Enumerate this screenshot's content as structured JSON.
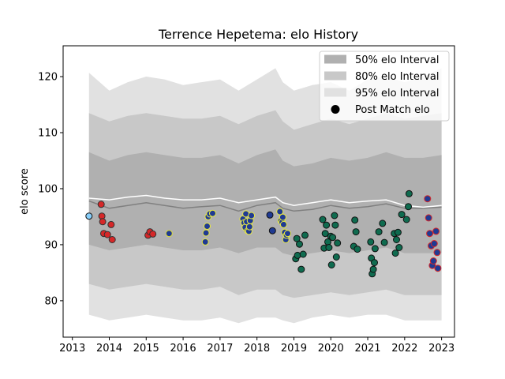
{
  "chart_data": {
    "type": "scatter",
    "title": "Terrence Hepetema: elo History",
    "xlabel": "",
    "ylabel": "elo score",
    "xlim": [
      2012.75,
      2023.35
    ],
    "ylim": [
      73.5,
      125.5
    ],
    "xticks": [
      2013,
      2014,
      2015,
      2016,
      2017,
      2018,
      2019,
      2020,
      2021,
      2022,
      2023
    ],
    "yticks": [
      80,
      90,
      100,
      110,
      120
    ],
    "legend": {
      "position": "top-right",
      "entries": [
        "50% elo Interval",
        "80% elo Interval",
        "95% elo Interval",
        "Post Match elo"
      ]
    },
    "colors": {
      "band95": "#e1e1e1",
      "band80": "#c8c8c8",
      "band50": "#b0b0b0",
      "median_line": "#808080",
      "mean_line": "#ffffff",
      "marker_edge": "#111111"
    },
    "bands": {
      "x": [
        2013.45,
        2014.0,
        2014.5,
        2015.0,
        2015.5,
        2016.0,
        2016.5,
        2017.0,
        2017.5,
        2018.0,
        2018.5,
        2018.7,
        2019.0,
        2019.5,
        2020.0,
        2020.5,
        2021.0,
        2021.5,
        2022.0,
        2022.5,
        2023.0
      ],
      "p95_hi": [
        120.7,
        117.5,
        119.0,
        120.0,
        119.5,
        118.5,
        119.0,
        119.5,
        117.5,
        119.5,
        121.5,
        119.0,
        117.5,
        118.5,
        119.0,
        117.5,
        119.5,
        120.0,
        119.0,
        120.0,
        121.5
      ],
      "p80_hi": [
        113.5,
        112.0,
        113.0,
        113.5,
        113.0,
        112.5,
        112.5,
        113.0,
        111.5,
        113.0,
        114.0,
        112.0,
        110.5,
        111.5,
        112.5,
        111.5,
        112.5,
        113.5,
        112.5,
        113.0,
        113.5
      ],
      "p50_hi": [
        106.5,
        105.0,
        106.0,
        106.5,
        106.0,
        105.5,
        105.5,
        106.0,
        104.5,
        106.0,
        107.0,
        105.0,
        104.0,
        104.5,
        105.5,
        105.0,
        105.5,
        106.5,
        105.5,
        105.5,
        106.0
      ],
      "median": [
        97.8,
        96.5,
        97.0,
        97.5,
        97.0,
        96.5,
        96.8,
        97.0,
        96.0,
        97.0,
        97.5,
        96.5,
        96.0,
        96.3,
        97.0,
        96.5,
        96.8,
        97.3,
        96.5,
        96.5,
        96.7
      ],
      "p50_lo": [
        90.0,
        89.0,
        89.5,
        90.0,
        89.5,
        89.0,
        89.0,
        89.5,
        88.5,
        89.5,
        89.5,
        88.5,
        88.0,
        88.5,
        89.0,
        88.5,
        89.0,
        89.5,
        88.5,
        88.5,
        88.5
      ],
      "p80_lo": [
        83.0,
        82.0,
        82.5,
        83.0,
        82.5,
        82.0,
        82.0,
        82.5,
        81.0,
        82.0,
        82.0,
        81.0,
        80.5,
        81.0,
        81.5,
        81.0,
        81.5,
        82.0,
        81.0,
        81.0,
        81.0
      ],
      "p95_lo": [
        77.5,
        76.5,
        77.0,
        77.5,
        77.0,
        76.5,
        76.5,
        77.0,
        76.0,
        77.0,
        77.0,
        76.5,
        76.0,
        77.0,
        77.5,
        77.0,
        77.5,
        77.5,
        76.5,
        76.5,
        76.5
      ],
      "mean": [
        98.3,
        98.0,
        98.5,
        98.8,
        98.3,
        98.0,
        98.0,
        98.3,
        97.5,
        98.0,
        98.5,
        97.5,
        97.0,
        97.5,
        98.0,
        97.5,
        97.8,
        98.0,
        97.0,
        96.7,
        97.0
      ]
    },
    "series": [
      {
        "fill": "#87cefa",
        "edge": "#111111",
        "points": [
          [
            2013.45,
            95.1
          ]
        ]
      },
      {
        "fill": "#d62728",
        "edge": "#333333",
        "points": [
          [
            2013.78,
            97.2
          ],
          [
            2013.8,
            95.1
          ],
          [
            2013.82,
            94.1
          ],
          [
            2013.85,
            92.0
          ],
          [
            2013.95,
            91.8
          ],
          [
            2014.05,
            93.6
          ],
          [
            2014.08,
            90.9
          ]
        ]
      },
      {
        "fill": "#d62728",
        "edge": "#333333",
        "points": [
          [
            2015.05,
            91.7
          ],
          [
            2015.1,
            92.3
          ],
          [
            2015.18,
            91.9
          ]
        ]
      },
      {
        "fill": "#1f3a93",
        "edge": "#dddd33",
        "points": [
          [
            2015.62,
            92.0
          ]
        ]
      },
      {
        "fill": "#1f3a93",
        "edge": "#e8e840",
        "points": [
          [
            2016.6,
            90.5
          ],
          [
            2016.62,
            92.1
          ],
          [
            2016.65,
            93.3
          ],
          [
            2016.68,
            95.0
          ],
          [
            2016.72,
            95.5
          ],
          [
            2016.8,
            95.6
          ],
          [
            2017.62,
            94.6
          ],
          [
            2017.65,
            93.9
          ],
          [
            2017.68,
            93.1
          ],
          [
            2017.7,
            95.5
          ],
          [
            2017.72,
            94.1
          ],
          [
            2017.75,
            92.5
          ],
          [
            2017.78,
            92.4
          ],
          [
            2017.8,
            93.2
          ],
          [
            2017.82,
            94.3
          ],
          [
            2017.85,
            95.2
          ],
          [
            2018.62,
            95.9
          ],
          [
            2018.65,
            94.3
          ],
          [
            2018.68,
            94.0
          ],
          [
            2018.7,
            94.9
          ],
          [
            2018.72,
            93.6
          ],
          [
            2018.75,
            92.2
          ],
          [
            2018.78,
            90.9
          ],
          [
            2018.8,
            91.7
          ],
          [
            2018.83,
            92.0
          ]
        ]
      },
      {
        "fill": "#1f3a93",
        "edge": "#111111",
        "points": [
          [
            2018.35,
            95.3
          ],
          [
            2018.42,
            92.5
          ]
        ]
      },
      {
        "fill": "#0f6b4f",
        "edge": "#111111",
        "points": [
          [
            2019.05,
            87.5
          ],
          [
            2019.08,
            91.1
          ],
          [
            2019.1,
            88.1
          ],
          [
            2019.15,
            90.1
          ],
          [
            2019.2,
            85.6
          ],
          [
            2019.25,
            88.3
          ],
          [
            2019.3,
            91.7
          ],
          [
            2019.78,
            94.5
          ],
          [
            2019.82,
            89.4
          ],
          [
            2019.85,
            92.0
          ],
          [
            2019.88,
            93.5
          ],
          [
            2019.92,
            90.5
          ],
          [
            2019.95,
            89.5
          ],
          [
            2020.0,
            91.5
          ],
          [
            2020.02,
            86.4
          ],
          [
            2020.05,
            91.3
          ],
          [
            2020.1,
            95.2
          ],
          [
            2020.12,
            93.5
          ],
          [
            2020.15,
            87.8
          ],
          [
            2020.18,
            90.3
          ],
          [
            2020.62,
            89.7
          ],
          [
            2020.65,
            94.4
          ],
          [
            2020.68,
            92.3
          ],
          [
            2020.72,
            89.2
          ],
          [
            2021.08,
            90.5
          ],
          [
            2021.1,
            87.6
          ],
          [
            2021.12,
            84.8
          ],
          [
            2021.15,
            85.6
          ],
          [
            2021.18,
            86.8
          ],
          [
            2021.2,
            89.3
          ],
          [
            2021.3,
            92.3
          ],
          [
            2021.4,
            93.8
          ],
          [
            2021.45,
            90.4
          ],
          [
            2021.72,
            92.0
          ],
          [
            2021.75,
            88.5
          ],
          [
            2021.78,
            90.9
          ],
          [
            2021.82,
            92.2
          ],
          [
            2021.85,
            89.5
          ],
          [
            2021.92,
            95.4
          ],
          [
            2022.05,
            94.5
          ],
          [
            2022.1,
            96.8
          ],
          [
            2022.12,
            99.1
          ]
        ]
      },
      {
        "fill": "#1f3a93",
        "edge": "#d62728",
        "points": [
          [
            2022.62,
            98.2
          ],
          [
            2022.65,
            94.8
          ],
          [
            2022.68,
            92.0
          ],
          [
            2022.72,
            89.8
          ],
          [
            2022.75,
            86.3
          ],
          [
            2022.78,
            87.1
          ],
          [
            2022.8,
            90.2
          ],
          [
            2022.85,
            92.4
          ],
          [
            2022.88,
            88.6
          ],
          [
            2022.9,
            85.8
          ]
        ]
      }
    ]
  }
}
